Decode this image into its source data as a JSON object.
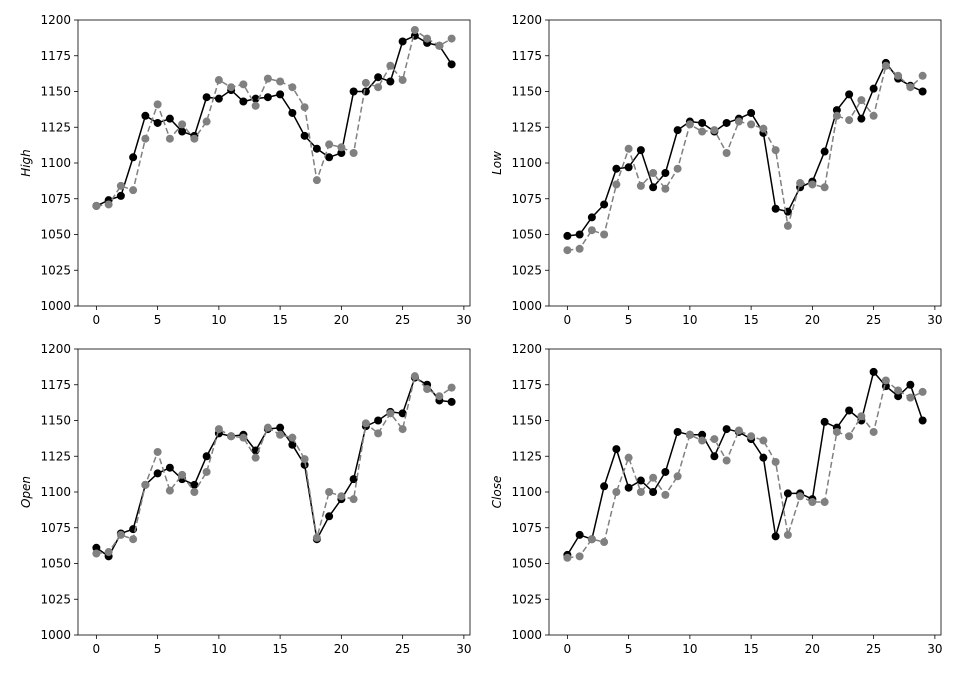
{
  "colors": {
    "background": "#ffffff",
    "actual": "#000000",
    "predicted": "#808080",
    "axis": "#000000"
  },
  "chart_data": [
    {
      "type": "line",
      "ylabel": "High",
      "xlabel": "",
      "title": "",
      "xlim": [
        -1.5,
        30.5
      ],
      "ylim": [
        1000,
        1200
      ],
      "xticks": [
        0,
        5,
        10,
        15,
        20,
        25,
        30
      ],
      "yticks": [
        1000,
        1025,
        1050,
        1075,
        1100,
        1125,
        1150,
        1175,
        1200
      ],
      "x": [
        0,
        1,
        2,
        3,
        4,
        5,
        6,
        7,
        8,
        9,
        10,
        11,
        12,
        13,
        14,
        15,
        16,
        17,
        18,
        19,
        20,
        21,
        22,
        23,
        24,
        25,
        26,
        27,
        28,
        29
      ],
      "series": [
        {
          "style": "solid",
          "color": "#000000",
          "values": [
            1070,
            1074,
            1077,
            1104,
            1133,
            1128,
            1131,
            1122,
            1119,
            1146,
            1145,
            1151,
            1143,
            1145,
            1146,
            1148,
            1135,
            1119,
            1110,
            1104,
            1107,
            1150,
            1150,
            1160,
            1157,
            1185,
            1189,
            1184,
            1182,
            1169
          ]
        },
        {
          "style": "dashed",
          "color": "#808080",
          "values": [
            1070,
            1071,
            1084,
            1081,
            1117,
            1141,
            1117,
            1127,
            1117,
            1129,
            1158,
            1153,
            1155,
            1140,
            1159,
            1157,
            1153,
            1139,
            1088,
            1113,
            1111,
            1107,
            1156,
            1153,
            1168,
            1158,
            1193,
            1187,
            1182,
            1187
          ]
        }
      ]
    },
    {
      "type": "line",
      "ylabel": "Low",
      "xlabel": "",
      "title": "",
      "xlim": [
        -1.5,
        30.5
      ],
      "ylim": [
        1000,
        1200
      ],
      "xticks": [
        0,
        5,
        10,
        15,
        20,
        25,
        30
      ],
      "yticks": [
        1000,
        1025,
        1050,
        1075,
        1100,
        1125,
        1150,
        1175,
        1200
      ],
      "x": [
        0,
        1,
        2,
        3,
        4,
        5,
        6,
        7,
        8,
        9,
        10,
        11,
        12,
        13,
        14,
        15,
        16,
        17,
        18,
        19,
        20,
        21,
        22,
        23,
        24,
        25,
        26,
        27,
        28,
        29
      ],
      "series": [
        {
          "style": "solid",
          "color": "#000000",
          "values": [
            1049,
            1050,
            1062,
            1071,
            1096,
            1097,
            1109,
            1083,
            1093,
            1123,
            1129,
            1128,
            1122,
            1128,
            1131,
            1135,
            1121,
            1068,
            1066,
            1083,
            1087,
            1108,
            1137,
            1148,
            1131,
            1152,
            1170,
            1159,
            1154,
            1150
          ]
        },
        {
          "style": "dashed",
          "color": "#808080",
          "values": [
            1039,
            1040,
            1053,
            1050,
            1085,
            1110,
            1084,
            1093,
            1082,
            1096,
            1127,
            1122,
            1123,
            1107,
            1129,
            1127,
            1124,
            1109,
            1056,
            1086,
            1085,
            1083,
            1133,
            1130,
            1144,
            1133,
            1168,
            1161,
            1153,
            1161
          ]
        }
      ]
    },
    {
      "type": "line",
      "ylabel": "Open",
      "xlabel": "",
      "title": "",
      "xlim": [
        -1.5,
        30.5
      ],
      "ylim": [
        1000,
        1200
      ],
      "xticks": [
        0,
        5,
        10,
        15,
        20,
        25,
        30
      ],
      "yticks": [
        1000,
        1025,
        1050,
        1075,
        1100,
        1125,
        1150,
        1175,
        1200
      ],
      "x": [
        0,
        1,
        2,
        3,
        4,
        5,
        6,
        7,
        8,
        9,
        10,
        11,
        12,
        13,
        14,
        15,
        16,
        17,
        18,
        19,
        20,
        21,
        22,
        23,
        24,
        25,
        26,
        27,
        28,
        29
      ],
      "series": [
        {
          "style": "solid",
          "color": "#000000",
          "values": [
            1061,
            1055,
            1071,
            1074,
            1105,
            1113,
            1117,
            1109,
            1105,
            1125,
            1141,
            1139,
            1140,
            1129,
            1144,
            1145,
            1133,
            1119,
            1067,
            1083,
            1095,
            1109,
            1146,
            1150,
            1156,
            1155,
            1180,
            1175,
            1164,
            1163
          ]
        },
        {
          "style": "dashed",
          "color": "#808080",
          "values": [
            1057,
            1058,
            1070,
            1067,
            1105,
            1128,
            1101,
            1112,
            1100,
            1114,
            1144,
            1139,
            1138,
            1124,
            1145,
            1140,
            1138,
            1123,
            1068,
            1100,
            1097,
            1095,
            1148,
            1141,
            1155,
            1144,
            1181,
            1172,
            1167,
            1173
          ]
        }
      ]
    },
    {
      "type": "line",
      "ylabel": "Close",
      "xlabel": "",
      "title": "",
      "xlim": [
        -1.5,
        30.5
      ],
      "ylim": [
        1000,
        1200
      ],
      "xticks": [
        0,
        5,
        10,
        15,
        20,
        25,
        30
      ],
      "yticks": [
        1000,
        1025,
        1050,
        1075,
        1100,
        1125,
        1150,
        1175,
        1200
      ],
      "x": [
        0,
        1,
        2,
        3,
        4,
        5,
        6,
        7,
        8,
        9,
        10,
        11,
        12,
        13,
        14,
        15,
        16,
        17,
        18,
        19,
        20,
        21,
        22,
        23,
        24,
        25,
        26,
        27,
        28,
        29
      ],
      "series": [
        {
          "style": "solid",
          "color": "#000000",
          "values": [
            1056,
            1070,
            1067,
            1104,
            1130,
            1103,
            1108,
            1100,
            1114,
            1142,
            1140,
            1140,
            1125,
            1144,
            1142,
            1137,
            1124,
            1069,
            1099,
            1099,
            1095,
            1149,
            1145,
            1157,
            1150,
            1184,
            1174,
            1167,
            1175,
            1150
          ]
        },
        {
          "style": "dashed",
          "color": "#808080",
          "values": [
            1054,
            1055,
            1067,
            1065,
            1100,
            1124,
            1100,
            1110,
            1098,
            1111,
            1140,
            1136,
            1137,
            1122,
            1143,
            1139,
            1136,
            1121,
            1070,
            1097,
            1093,
            1093,
            1142,
            1139,
            1153,
            1142,
            1178,
            1171,
            1166,
            1170
          ]
        }
      ]
    }
  ]
}
